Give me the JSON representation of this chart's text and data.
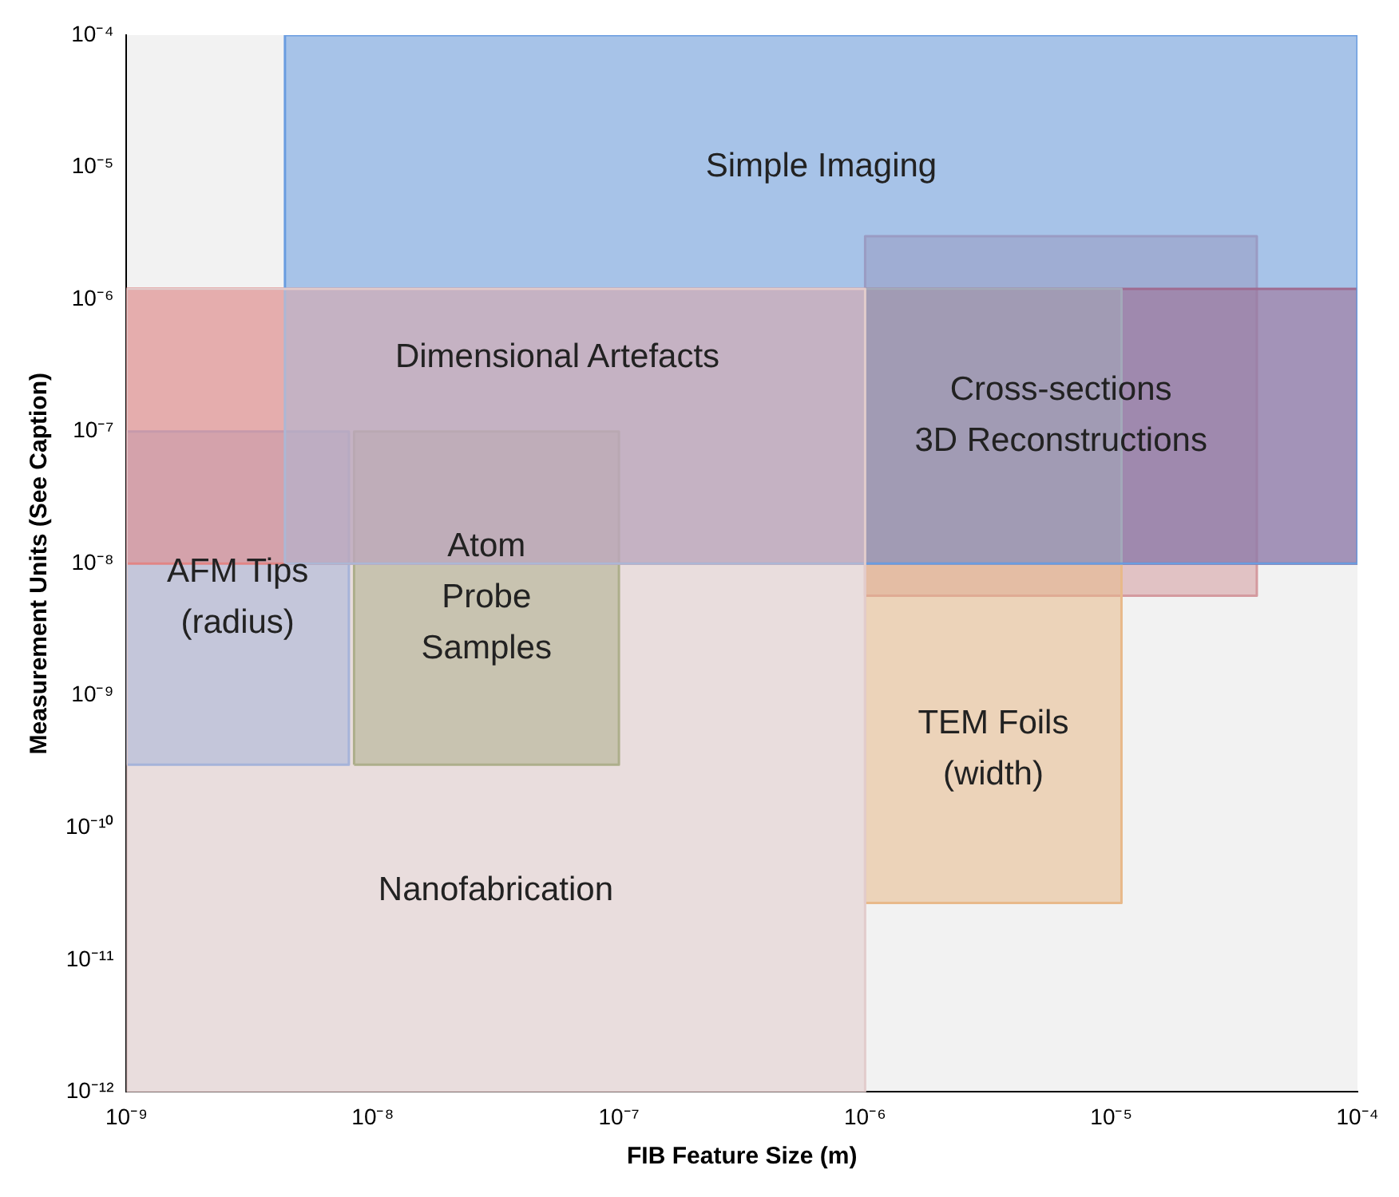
{
  "chart_data": {
    "type": "area",
    "marker": "none",
    "xlabel": "FIB Feature Size (m)",
    "ylabel": "Measurement Units (See Caption)",
    "log": "xy",
    "grid": false,
    "legend": false,
    "xlim": [
      1e-09,
      0.0001
    ],
    "ylim": [
      1e-12,
      0.0001
    ],
    "xticks": [
      {
        "value": 1e-09,
        "label": "10⁻⁹"
      },
      {
        "value": 1e-08,
        "label": "10⁻⁸"
      },
      {
        "value": 1e-07,
        "label": "10⁻⁷"
      },
      {
        "value": 1e-06,
        "label": "10⁻⁶"
      },
      {
        "value": 1e-05,
        "label": "10⁻⁵"
      },
      {
        "value": 0.0001,
        "label": "10⁻⁴"
      }
    ],
    "yticks": [
      {
        "value": 1e-12,
        "label": "10⁻¹²"
      },
      {
        "value": 1e-11,
        "label": "10⁻¹¹"
      },
      {
        "value": 1e-10,
        "label": "10⁻¹⁰"
      },
      {
        "value": 1e-09,
        "label": "10⁻⁹"
      },
      {
        "value": 1e-08,
        "label": "10⁻⁸"
      },
      {
        "value": 1e-07,
        "label": "10⁻⁷"
      },
      {
        "value": 1e-06,
        "label": "10⁻⁶"
      },
      {
        "value": 1e-05,
        "label": "10⁻⁵"
      },
      {
        "value": 0.0001,
        "label": "10⁻⁴"
      }
    ],
    "series": [
      {
        "name": "Nanofabrication",
        "color": "#e2cccc",
        "x": [
          1e-09,
          1e-09,
          1e-06,
          1e-06,
          1e-09
        ],
        "values": [
          1e-12,
          1.2e-06,
          1.2e-06,
          1e-12,
          1e-12
        ]
      },
      {
        "name": "Simple Imaging",
        "color": "#6a9de0",
        "x": [
          4.4e-09,
          4.4e-09,
          0.0001,
          0.0001,
          4.4e-09
        ],
        "values": [
          1e-08,
          0.0001,
          0.0001,
          1e-08,
          1e-08
        ]
      },
      {
        "name": "TEM Foils\n(width)",
        "color": "#e8b98a",
        "x": [
          1e-06,
          1e-06,
          1.1e-05,
          1.1e-05,
          1e-06
        ],
        "values": [
          2.7e-11,
          1.2e-06,
          1.2e-06,
          2.7e-11,
          2.7e-11
        ]
      },
      {
        "name": "Dimensional Artefacts",
        "color": "#e03030",
        "x": [
          1e-09,
          1e-09,
          0.0001,
          0.0001,
          1e-09
        ],
        "values": [
          1e-08,
          1.2e-06,
          1.2e-06,
          1e-08,
          1e-08
        ]
      },
      {
        "name": "AFM Tips\n(radius)",
        "color": "#5b95e8",
        "x": [
          1e-09,
          1e-09,
          8e-09,
          8e-09,
          1e-09
        ],
        "values": [
          3e-10,
          1e-07,
          1e-07,
          3e-10,
          3e-10
        ]
      },
      {
        "name": "Atom\nProbe\nSamples",
        "color": "#6e8b3d",
        "x": [
          8.4e-09,
          8.4e-09,
          1e-07,
          1e-07,
          8.4e-09
        ],
        "values": [
          3e-10,
          1e-07,
          1e-07,
          3e-10,
          3e-10
        ]
      },
      {
        "name": "Cross-sections\n3D Reconstructions",
        "color": "#d49a9f",
        "x": [
          1e-06,
          1e-06,
          3.9e-05,
          3.9e-05,
          1e-06
        ],
        "values": [
          5.7e-09,
          3e-06,
          3e-06,
          5.7e-09,
          5.7e-09
        ]
      }
    ]
  }
}
